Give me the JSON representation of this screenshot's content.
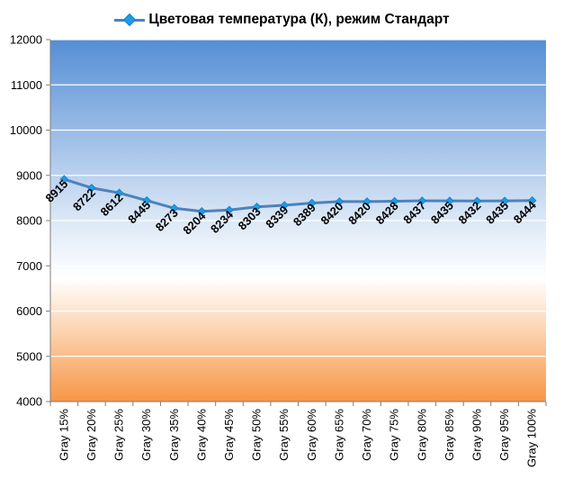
{
  "chart_data": {
    "type": "line",
    "categories": [
      "Gray 15%",
      "Gray 20%",
      "Gray 25%",
      "Gray 30%",
      "Gray 35%",
      "Gray 40%",
      "Gray 45%",
      "Gray 50%",
      "Gray 55%",
      "Gray 60%",
      "Gray 65%",
      "Gray 70%",
      "Gray 75%",
      "Gray 80%",
      "Gray 85%",
      "Gray 90%",
      "Gray 95%",
      "Gray 100%"
    ],
    "series": [
      {
        "name": "Цветовая температура (К), режим Стандарт",
        "values": [
          8915,
          8722,
          8612,
          8445,
          8273,
          8204,
          8234,
          8303,
          8339,
          8389,
          8420,
          8420,
          8428,
          8437,
          8435,
          8432,
          8435,
          8444
        ],
        "color": "#4f81bd",
        "marker_color": "#1e9be6"
      }
    ],
    "ylim": [
      4000,
      12000
    ],
    "yticks": [
      4000,
      5000,
      6000,
      7000,
      8000,
      9000,
      10000,
      11000,
      12000
    ],
    "grid": true,
    "legend_position": "top",
    "data_labels": true,
    "background_colors": {
      "top": "#558ed5",
      "middle": "#ffffff",
      "bottom": "#f79646"
    }
  }
}
